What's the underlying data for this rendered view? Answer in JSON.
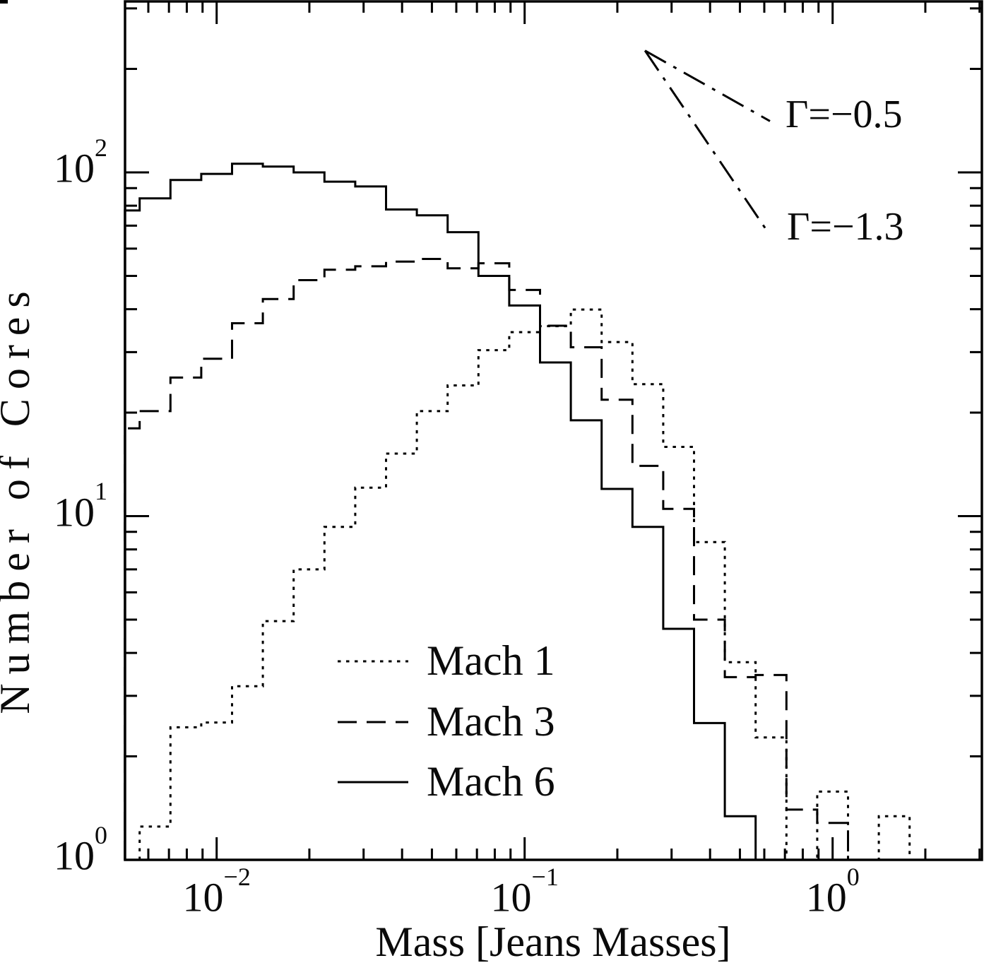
{
  "chart_data": {
    "type": "line",
    "line_mode": "step-histogram",
    "title": "",
    "xlabel": "Mass [Jeans Masses]",
    "ylabel": "Number of Cores",
    "x_scale": "log",
    "y_scale": "log",
    "xlim": [
      0.005,
      3.05
    ],
    "ylim": [
      1,
      315
    ],
    "grid": false,
    "x_major_ticks": [
      {
        "value": 0.01,
        "base": "10",
        "exp": "−2"
      },
      {
        "value": 0.1,
        "base": "10",
        "exp": "−1"
      },
      {
        "value": 1,
        "base": "10",
        "exp": "0"
      }
    ],
    "y_major_ticks": [
      {
        "value": 1,
        "base": "10",
        "exp": "0"
      },
      {
        "value": 10,
        "base": "10",
        "exp": "1"
      },
      {
        "value": 100,
        "base": "10",
        "exp": "2"
      }
    ],
    "series": [
      {
        "name": "Mach 1",
        "style": "dotted",
        "log10_bin_edges": [
          -2.25,
          -2.15,
          -2.05,
          -1.95,
          -1.85,
          -1.75,
          -1.65,
          -1.55,
          -1.45,
          -1.35,
          -1.25,
          -1.15,
          -1.05,
          -0.95,
          -0.85,
          -0.75,
          -0.65,
          -0.55,
          -0.45,
          -0.35,
          -0.25,
          -0.15,
          -0.05,
          0.05,
          0.15,
          0.25
        ],
        "counts": [
          1.25,
          2.43,
          2.51,
          3.2,
          4.95,
          7.0,
          9.3,
          12.1,
          15.2,
          20.2,
          24,
          30.4,
          34.3,
          35.7,
          39.9,
          32.1,
          24.2,
          15.9,
          8.4,
          3.76,
          2.27,
          1.0,
          1.58,
          1.0,
          1.34
        ]
      },
      {
        "name": "Mach 3",
        "style": "dashed",
        "log10_bin_edges": [
          -2.298,
          -2.25,
          -2.15,
          -2.05,
          -1.95,
          -1.85,
          -1.75,
          -1.65,
          -1.55,
          -1.45,
          -1.35,
          -1.25,
          -1.15,
          -1.05,
          -0.95,
          -0.85,
          -0.75,
          -0.65,
          -0.55,
          -0.45,
          -0.35,
          -0.25,
          -0.15,
          -0.05,
          0.05
        ],
        "counts": [
          18,
          20.2,
          25.3,
          28.7,
          36.4,
          42.8,
          48.6,
          52.1,
          53.3,
          55,
          56,
          52.6,
          54.4,
          45.5,
          35.8,
          31,
          21.8,
          14,
          10.5,
          5.0,
          3.4,
          3.45,
          1.4,
          1.28
        ]
      },
      {
        "name": "Mach 6",
        "style": "solid",
        "log10_bin_edges": [
          -2.298,
          -2.25,
          -2.15,
          -2.05,
          -1.95,
          -1.85,
          -1.75,
          -1.65,
          -1.55,
          -1.45,
          -1.35,
          -1.25,
          -1.15,
          -1.05,
          -0.95,
          -0.85,
          -0.75,
          -0.65,
          -0.55,
          -0.45,
          -0.35,
          -0.25
        ],
        "counts": [
          77.5,
          84,
          95,
          99,
          106,
          104,
          100,
          94,
          91,
          78,
          75,
          67,
          50,
          41,
          28,
          19,
          12,
          9.3,
          4.7,
          2.5,
          1.34
        ]
      }
    ],
    "reference_lines": [
      {
        "label": "Γ=−0.5",
        "gamma": -0.5,
        "x": [
          0.246,
          0.626
        ],
        "y": [
          226,
          141
        ]
      },
      {
        "label": "Γ=−1.3",
        "gamma": -1.3,
        "x": [
          0.246,
          0.62
        ],
        "y": [
          226,
          66.5
        ]
      }
    ],
    "legend": {
      "items": [
        "Mach 1",
        "Mach 3",
        "Mach 6"
      ]
    }
  }
}
